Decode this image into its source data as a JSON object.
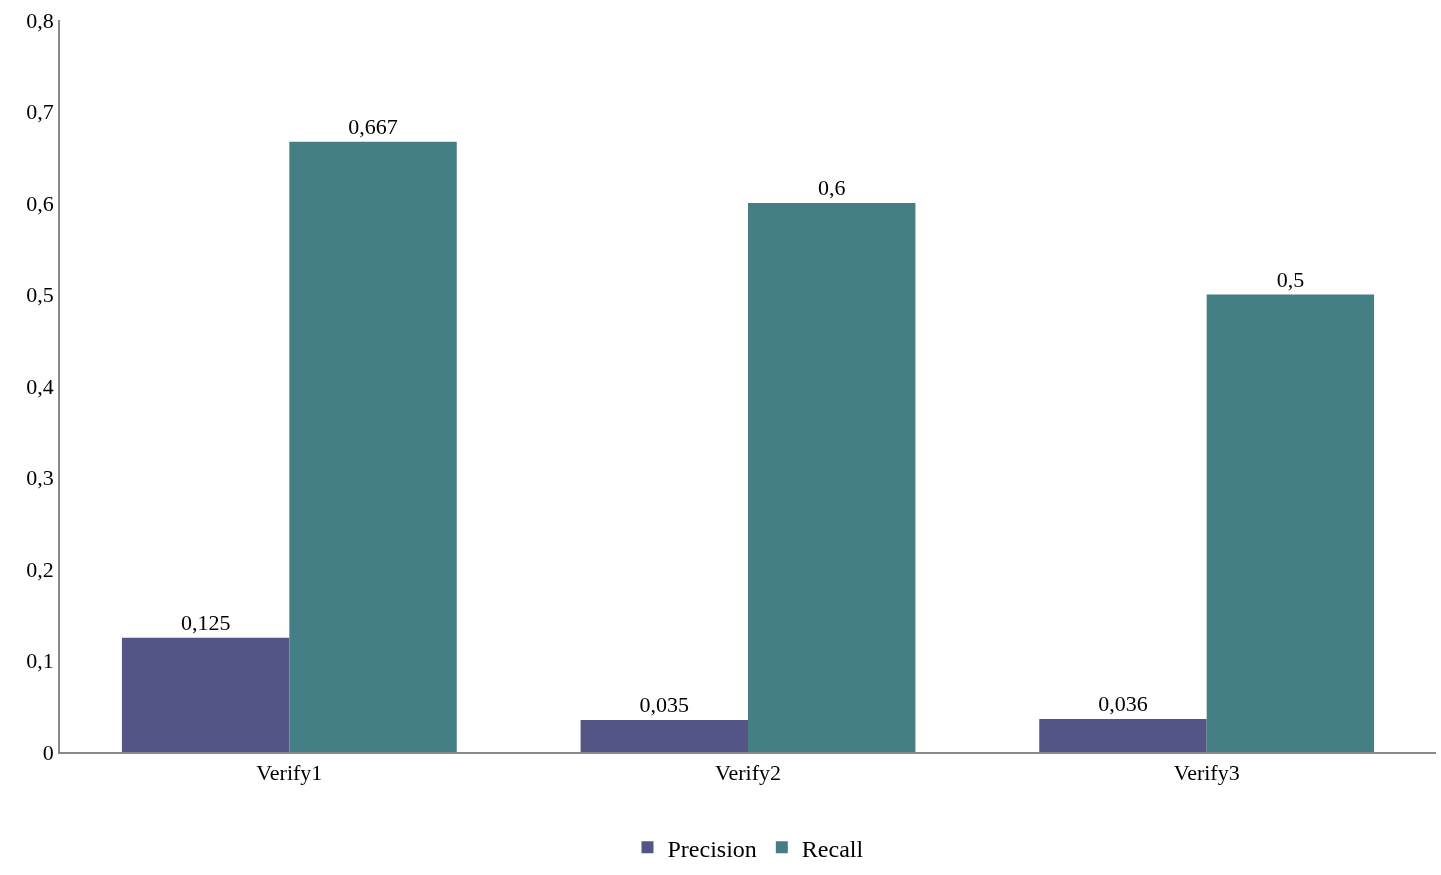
{
  "chart_data": {
    "type": "bar",
    "categories": [
      "Verify1",
      "Verify2",
      "Verify3"
    ],
    "series": [
      {
        "name": "Precision",
        "color": "#545587",
        "values": [
          0.125,
          0.035,
          0.036
        ],
        "value_labels": [
          "0,125",
          "0,035",
          "0,036"
        ]
      },
      {
        "name": "Recall",
        "color": "#437f84",
        "values": [
          0.667,
          0.6,
          0.5
        ],
        "value_labels": [
          "0,667",
          "0,6",
          "0,5"
        ]
      }
    ],
    "ylim": [
      0,
      0.8
    ],
    "yticks": [
      0,
      {
        "value": 0.1,
        "label": "0,1"
      },
      {
        "value": 0.2,
        "label": "0,2"
      },
      {
        "value": 0.3,
        "label": "0,3"
      },
      {
        "value": 0.4,
        "label": "0,4"
      },
      {
        "value": 0.5,
        "label": "0,5"
      },
      {
        "value": 0.6,
        "label": "0,6"
      },
      {
        "value": 0.7,
        "label": "0,7"
      },
      {
        "value": 0.8,
        "label": "0,8"
      }
    ],
    "legend": "bottom"
  }
}
